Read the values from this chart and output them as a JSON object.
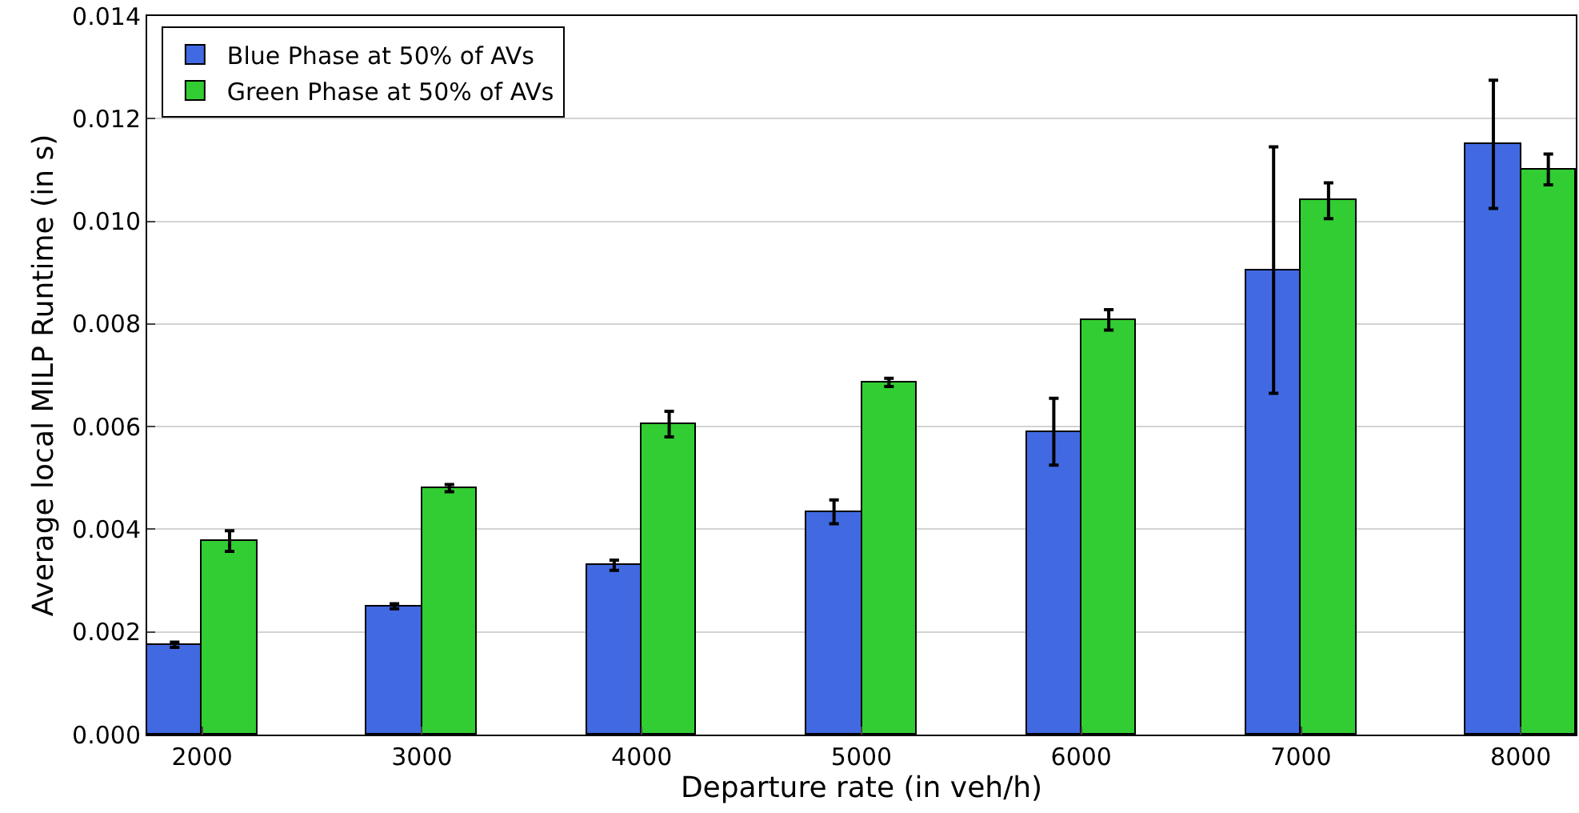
{
  "chart_data": {
    "type": "bar",
    "xlabel": "Departure rate (in veh/h)",
    "ylabel": "Average local MILP Runtime (in s)",
    "categories": [
      "2000",
      "3000",
      "4000",
      "5000",
      "6000",
      "7000",
      "8000"
    ],
    "series": [
      {
        "name": "Blue Phase at 50% of AVs",
        "color": "#4169e1",
        "values": [
          0.00175,
          0.0025,
          0.0033,
          0.00434,
          0.0059,
          0.00905,
          0.0115
        ],
        "errors": [
          5e-05,
          5e-05,
          0.0001,
          0.00023,
          0.00065,
          0.0024,
          0.00125
        ]
      },
      {
        "name": "Green Phase at 50% of AVs",
        "color": "#32cd32",
        "values": [
          0.00377,
          0.0048,
          0.00605,
          0.00686,
          0.00808,
          0.0104,
          0.01101
        ],
        "errors": [
          0.0002,
          7e-05,
          0.00025,
          8e-05,
          0.0002,
          0.00035,
          0.0003
        ]
      }
    ],
    "ylim": [
      0,
      0.014
    ],
    "yticks": [
      {
        "value": 0,
        "label": "0.000"
      },
      {
        "value": 0.002,
        "label": "0.002"
      },
      {
        "value": 0.004,
        "label": "0.004"
      },
      {
        "value": 0.006,
        "label": "0.006"
      },
      {
        "value": 0.008,
        "label": "0.008"
      },
      {
        "value": 0.01,
        "label": "0.010"
      },
      {
        "value": 0.012,
        "label": "0.012"
      },
      {
        "value": 0.014,
        "label": "0.014"
      }
    ],
    "grid": "y",
    "legend": "top left"
  }
}
